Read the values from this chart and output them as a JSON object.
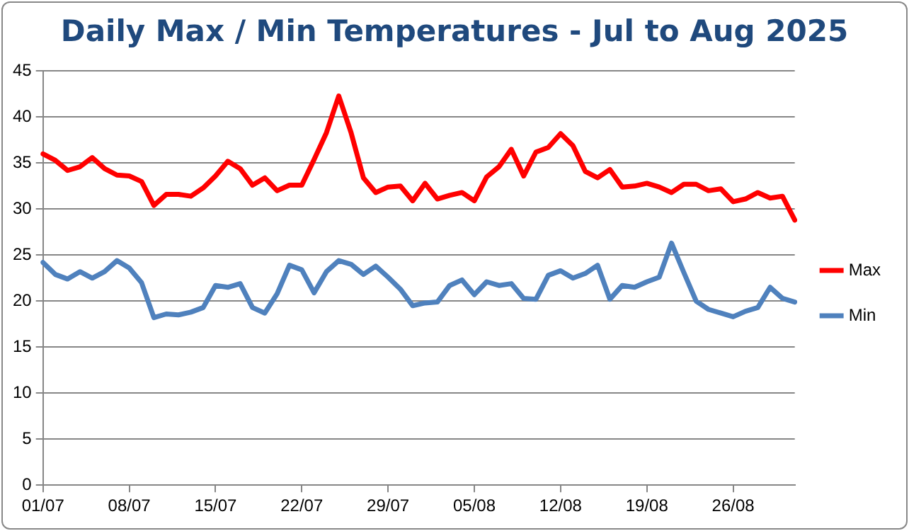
{
  "chart_data": {
    "type": "line",
    "title": "Daily Max / Min Temperatures - Jul to Aug 2025",
    "categories": [
      "01/07",
      null,
      null,
      null,
      null,
      null,
      null,
      "08/07",
      null,
      null,
      null,
      null,
      null,
      null,
      "15/07",
      null,
      null,
      null,
      null,
      null,
      null,
      "22/07",
      null,
      null,
      null,
      null,
      null,
      null,
      "29/07",
      null,
      null,
      null,
      null,
      null,
      null,
      "05/08",
      null,
      null,
      null,
      null,
      null,
      null,
      "12/08",
      null,
      null,
      null,
      null,
      null,
      null,
      "19/08",
      null,
      null,
      null,
      null,
      null,
      null,
      "26/08",
      null,
      null,
      null,
      null,
      null
    ],
    "series": [
      {
        "name": "Max",
        "color": "#ff0000",
        "values": [
          36.0,
          35.3,
          34.2,
          34.6,
          35.6,
          34.4,
          33.7,
          33.6,
          33.0,
          30.4,
          31.6,
          31.6,
          31.4,
          32.3,
          33.6,
          35.2,
          34.4,
          32.6,
          33.4,
          32.0,
          32.6,
          32.6,
          35.4,
          38.3,
          42.3,
          38.3,
          33.4,
          31.8,
          32.4,
          32.5,
          30.9,
          32.8,
          31.1,
          31.5,
          31.8,
          30.9,
          33.5,
          34.6,
          36.5,
          33.6,
          36.2,
          36.7,
          38.2,
          36.9,
          34.1,
          33.4,
          34.3,
          32.4,
          32.5,
          32.8,
          32.4,
          31.8,
          32.7,
          32.7,
          32.0,
          32.2,
          30.8,
          31.1,
          31.8,
          31.2,
          31.4,
          28.8
        ]
      },
      {
        "name": "Min",
        "color": "#4f81bd",
        "values": [
          24.2,
          22.9,
          22.4,
          23.2,
          22.5,
          23.2,
          24.4,
          23.6,
          22.0,
          18.2,
          18.6,
          18.5,
          18.8,
          19.3,
          21.7,
          21.5,
          21.9,
          19.3,
          18.7,
          20.8,
          23.9,
          23.4,
          20.9,
          23.2,
          24.4,
          24.0,
          22.9,
          23.8,
          22.6,
          21.3,
          19.5,
          19.8,
          19.9,
          21.7,
          22.3,
          20.7,
          22.1,
          21.7,
          21.9,
          20.3,
          20.2,
          22.8,
          23.3,
          22.5,
          23.0,
          23.9,
          20.2,
          21.7,
          21.5,
          22.1,
          22.6,
          26.3,
          23.1,
          20.0,
          19.1,
          18.7,
          18.3,
          18.9,
          19.3,
          21.5,
          20.3,
          19.9
        ]
      }
    ],
    "ylim": [
      0,
      45
    ],
    "yticks": [
      0,
      5,
      10,
      15,
      20,
      25,
      30,
      35,
      40,
      45
    ],
    "grid": "y",
    "legend": "right",
    "marker": "none",
    "line_style": "solid"
  }
}
